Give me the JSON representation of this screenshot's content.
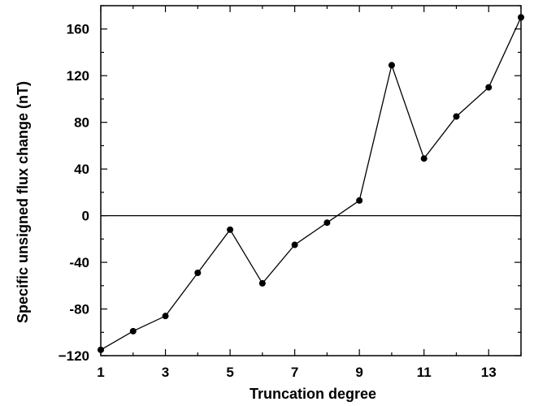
{
  "chart_data": {
    "type": "line",
    "title": "",
    "xlabel": "Truncation degree",
    "ylabel": "Specific unsigned flux change (nT)",
    "xlim": [
      1,
      14
    ],
    "ylim": [
      -120,
      180
    ],
    "xticks_major": [
      1,
      3,
      5,
      7,
      9,
      11,
      13
    ],
    "yticks_major": [
      -120,
      -80,
      -40,
      0,
      40,
      80,
      120,
      160
    ],
    "xtick_labels": [
      "1",
      "3",
      "5",
      "7",
      "9",
      "11",
      "13"
    ],
    "ytick_labels": [
      "−120",
      "-80",
      "-40",
      "0",
      "40",
      "80",
      "120",
      "160"
    ],
    "reference_line_y": 0,
    "grid": false,
    "legend": false,
    "series": [
      {
        "x": [
          1,
          2,
          3,
          4,
          5,
          6,
          7,
          8,
          9,
          10,
          11,
          12,
          13,
          14
        ],
        "values": [
          -115,
          -99,
          -86,
          -49,
          -12,
          -58,
          -25,
          -6,
          13,
          129,
          49,
          85,
          110,
          170
        ],
        "color": "#000000",
        "marker": "filled-circle"
      }
    ]
  }
}
